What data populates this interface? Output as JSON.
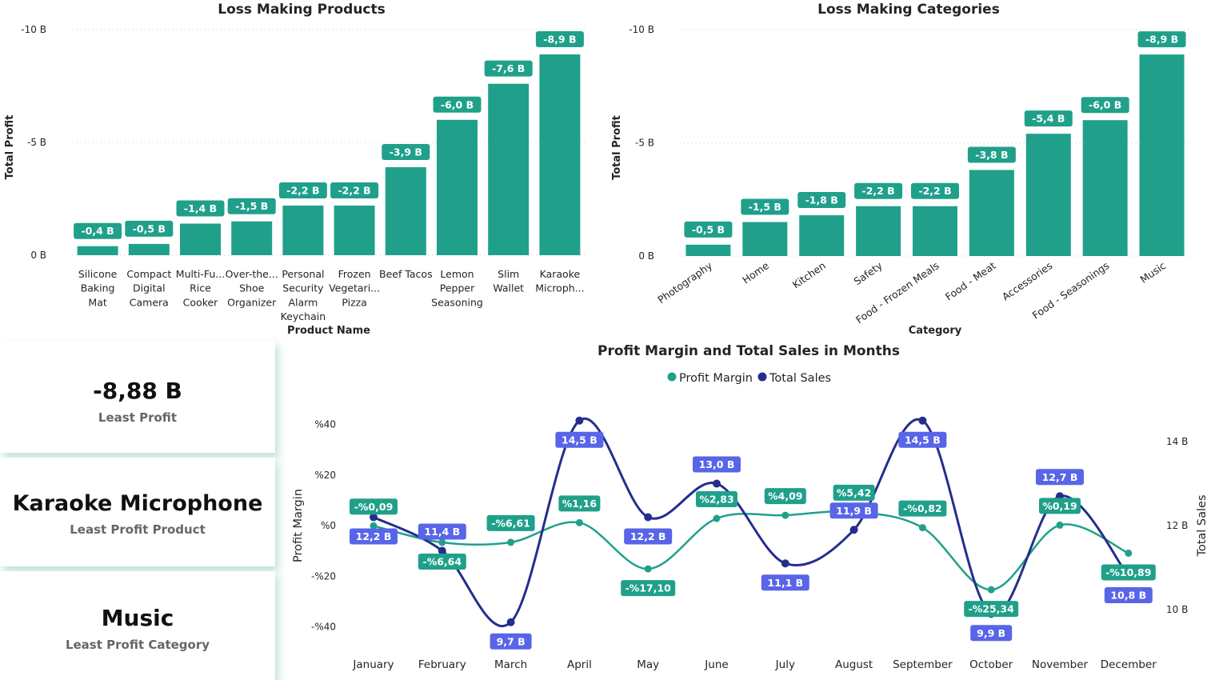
{
  "colors": {
    "teal": "#20a08a",
    "navy": "#252e8c",
    "sales_label": "#5865e8",
    "axis_text": "#252423"
  },
  "cards": [
    {
      "value": "-8,88 B",
      "label": "Least Profit"
    },
    {
      "value": "Karaoke Microphone",
      "label": "Least Profit Product"
    },
    {
      "value": "Music",
      "label": "Least Profit Category"
    }
  ],
  "chart_data": [
    {
      "type": "bar",
      "title": "Loss Making Products",
      "xlabel": "Product Name",
      "ylabel": "Total Profit",
      "yticks": [
        "-10 B",
        "-5 B",
        "0 B"
      ],
      "ylim": [
        0,
        -10
      ],
      "categories": [
        [
          "Silicone",
          "Baking",
          "Mat"
        ],
        [
          "Compact",
          "Digital",
          "Camera"
        ],
        [
          "Multi-Fu...",
          "Rice",
          "Cooker"
        ],
        [
          "Over-the...",
          "Shoe",
          "Organizer"
        ],
        [
          "Personal",
          "Security",
          "Alarm",
          "Keychain"
        ],
        [
          "Frozen",
          "Vegetari...",
          "Pizza"
        ],
        [
          "Beef Tacos"
        ],
        [
          "Lemon",
          "Pepper",
          "Seasoning"
        ],
        [
          "Slim",
          "Wallet"
        ],
        [
          "Karaoke",
          "Microph..."
        ]
      ],
      "values": [
        -0.4,
        -0.5,
        -1.4,
        -1.5,
        -2.2,
        -2.2,
        -3.9,
        -6.0,
        -7.6,
        -8.9
      ],
      "data_labels": [
        "-0,4 B",
        "-0,5 B",
        "-1,4 B",
        "-1,5 B",
        "-2,2 B",
        "-2,2 B",
        "-3,9 B",
        "-6,0 B",
        "-7,6 B",
        "-8,9 B"
      ]
    },
    {
      "type": "bar",
      "title": "Loss Making Categories",
      "xlabel": "Category",
      "ylabel": "Total Profit",
      "yticks": [
        "-10 B",
        "-5 B",
        "0 B"
      ],
      "ylim": [
        0,
        -10
      ],
      "categories": [
        "Photography",
        "Home",
        "Kitchen",
        "Safety",
        "Food - Frozen Meals",
        "Food - Meat",
        "Accessories",
        "Food - Seasonings",
        "Music"
      ],
      "values": [
        -0.5,
        -1.5,
        -1.8,
        -2.2,
        -2.2,
        -3.8,
        -5.4,
        -6.0,
        -8.9
      ],
      "data_labels": [
        "-0,5 B",
        "-1,5 B",
        "-1,8 B",
        "-2,2 B",
        "-2,2 B",
        "-3,8 B",
        "-5,4 B",
        "-6,0 B",
        "-8,9 B"
      ]
    },
    {
      "type": "line",
      "title": "Profit Margin and Total Sales in Months",
      "x": [
        "January",
        "February",
        "March",
        "April",
        "May",
        "June",
        "July",
        "August",
        "September",
        "October",
        "November",
        "December"
      ],
      "ylabel": "Profit Margin",
      "y2label": "Total Sales",
      "yticks": [
        "%40",
        "%20",
        "%0",
        "-%20",
        "-%40"
      ],
      "ylim": [
        -40,
        40
      ],
      "y2ticks": [
        "14 B",
        "12 B",
        "10 B"
      ],
      "y2lim": [
        10,
        14
      ],
      "legend": "top-center",
      "series": [
        {
          "name": "Profit Margin",
          "axis": "left",
          "values": [
            -0.09,
            -6.64,
            -6.61,
            1.16,
            -17.1,
            2.83,
            4.09,
            5.42,
            -0.82,
            -25.34,
            0.19,
            -10.89
          ],
          "data_labels": [
            "-%0,09",
            "-%6,64",
            "-%6,61",
            "%1,16",
            "-%17,10",
            "%2,83",
            "%4,09",
            "%5,42",
            "-%0,82",
            "-%25,34",
            "%0,19",
            "-%10,89"
          ]
        },
        {
          "name": "Total Sales",
          "axis": "right",
          "values": [
            12.2,
            11.4,
            9.7,
            14.5,
            12.2,
            13.0,
            11.1,
            11.9,
            14.5,
            9.9,
            12.7,
            10.8
          ],
          "data_labels": [
            "12,2 B",
            "11,4 B",
            "9,7 B",
            "14,5 B",
            "12,2 B",
            "13,0 B",
            "11,1 B",
            "11,9 B",
            "14,5 B",
            "9,9 B",
            "12,7 B",
            "10,8 B"
          ]
        }
      ]
    }
  ]
}
